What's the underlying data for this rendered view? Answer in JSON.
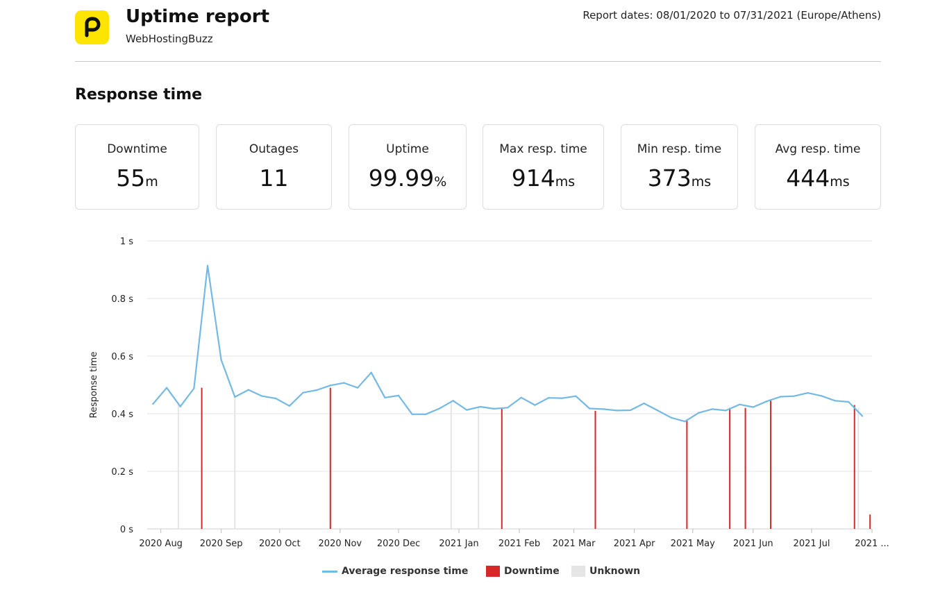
{
  "header": {
    "title": "Uptime report",
    "subtitle": "WebHostingBuzz",
    "report_dates": "Report dates: 08/01/2020 to 07/31/2021 (Europe/Athens)"
  },
  "section": {
    "title": "Response time"
  },
  "stats": [
    {
      "label": "Downtime",
      "value": "55",
      "unit": "m"
    },
    {
      "label": "Outages",
      "value": "11",
      "unit": ""
    },
    {
      "label": "Uptime",
      "value": "99.99",
      "unit": "%"
    },
    {
      "label": "Max resp. time",
      "value": "914",
      "unit": "ms"
    },
    {
      "label": "Min resp. time",
      "value": "373",
      "unit": "ms"
    },
    {
      "label": "Avg resp. time",
      "value": "444",
      "unit": "ms"
    }
  ],
  "colors": {
    "brand": "#fde500",
    "line": "#74b9e4",
    "downtime": "#d62828",
    "unknown": "#e5e5e5",
    "grid": "#e3e3e3"
  },
  "chart_data": {
    "type": "line",
    "xlabel": "",
    "ylabel": "Response time",
    "ylim": [
      0,
      1
    ],
    "y_ticks": [
      {
        "value": 0,
        "label": "0  s"
      },
      {
        "value": 0.2,
        "label": "0.2  s"
      },
      {
        "value": 0.4,
        "label": "0.4  s"
      },
      {
        "value": 0.6,
        "label": "0.6  s"
      },
      {
        "value": 0.8,
        "label": "0.8  s"
      },
      {
        "value": 1,
        "label": "1  s"
      }
    ],
    "x_range": [
      "2020-07-25",
      "2021-08-01"
    ],
    "x_ticks": [
      {
        "date": "2020-08-01",
        "label": "2020 Aug"
      },
      {
        "date": "2020-09-01",
        "label": "2020 Sep"
      },
      {
        "date": "2020-10-01",
        "label": "2020 Oct"
      },
      {
        "date": "2020-11-01",
        "label": "2020 Nov"
      },
      {
        "date": "2020-12-01",
        "label": "2020 Dec"
      },
      {
        "date": "2021-01-01",
        "label": "2021 Jan"
      },
      {
        "date": "2021-02-01",
        "label": "2021 Feb"
      },
      {
        "date": "2021-03-01",
        "label": "2021 Mar"
      },
      {
        "date": "2021-04-01",
        "label": "2021 Apr"
      },
      {
        "date": "2021-05-01",
        "label": "2021 May"
      },
      {
        "date": "2021-06-01",
        "label": "2021 Jun"
      },
      {
        "date": "2021-07-01",
        "label": "2021 Jul"
      },
      {
        "date": "2021-08-01",
        "label": "2021 ..."
      }
    ],
    "grid": true,
    "legend_position": "bottom",
    "series": [
      {
        "name": "Average response time",
        "x": [
          "2020-07-28",
          "2020-08-04",
          "2020-08-11",
          "2020-08-18",
          "2020-08-25",
          "2020-09-01",
          "2020-09-08",
          "2020-09-15",
          "2020-09-22",
          "2020-09-29",
          "2020-10-06",
          "2020-10-13",
          "2020-10-20",
          "2020-10-27",
          "2020-11-03",
          "2020-11-10",
          "2020-11-17",
          "2020-11-24",
          "2020-12-01",
          "2020-12-08",
          "2020-12-15",
          "2020-12-22",
          "2020-12-29",
          "2021-01-05",
          "2021-01-12",
          "2021-01-19",
          "2021-01-26",
          "2021-02-02",
          "2021-02-09",
          "2021-02-16",
          "2021-02-23",
          "2021-03-02",
          "2021-03-09",
          "2021-03-16",
          "2021-03-23",
          "2021-03-30",
          "2021-04-06",
          "2021-04-13",
          "2021-04-20",
          "2021-04-27",
          "2021-05-04",
          "2021-05-11",
          "2021-05-18",
          "2021-05-25",
          "2021-06-01",
          "2021-06-08",
          "2021-06-15",
          "2021-06-22",
          "2021-06-29",
          "2021-07-06",
          "2021-07-13",
          "2021-07-20",
          "2021-07-27"
        ],
        "values": [
          0.434,
          0.49,
          0.425,
          0.488,
          0.914,
          0.587,
          0.458,
          0.483,
          0.461,
          0.453,
          0.427,
          0.473,
          0.482,
          0.498,
          0.507,
          0.49,
          0.543,
          0.456,
          0.463,
          0.398,
          0.398,
          0.418,
          0.445,
          0.413,
          0.424,
          0.417,
          0.421,
          0.456,
          0.43,
          0.455,
          0.454,
          0.461,
          0.418,
          0.416,
          0.411,
          0.412,
          0.436,
          0.411,
          0.386,
          0.373,
          0.403,
          0.416,
          0.411,
          0.432,
          0.423,
          0.443,
          0.459,
          0.461,
          0.472,
          0.462,
          0.445,
          0.441,
          0.392
        ]
      },
      {
        "name": "Downtime",
        "type": "bar",
        "x": [
          "2020-08-22",
          "2020-10-27",
          "2021-01-23",
          "2021-03-12",
          "2021-04-28",
          "2021-05-20",
          "2021-05-28",
          "2021-06-10",
          "2021-07-23",
          "2021-07-31"
        ],
        "values": [
          0.49,
          0.49,
          0.42,
          0.41,
          0.38,
          0.42,
          0.42,
          0.45,
          0.43,
          0.05
        ]
      },
      {
        "name": "Unknown",
        "type": "bar",
        "x": [
          "2020-08-10",
          "2020-09-08",
          "2020-12-28",
          "2021-01-11",
          "2021-07-25"
        ],
        "values": [
          0.44,
          0.46,
          0.44,
          0.42,
          0.42
        ]
      }
    ]
  }
}
